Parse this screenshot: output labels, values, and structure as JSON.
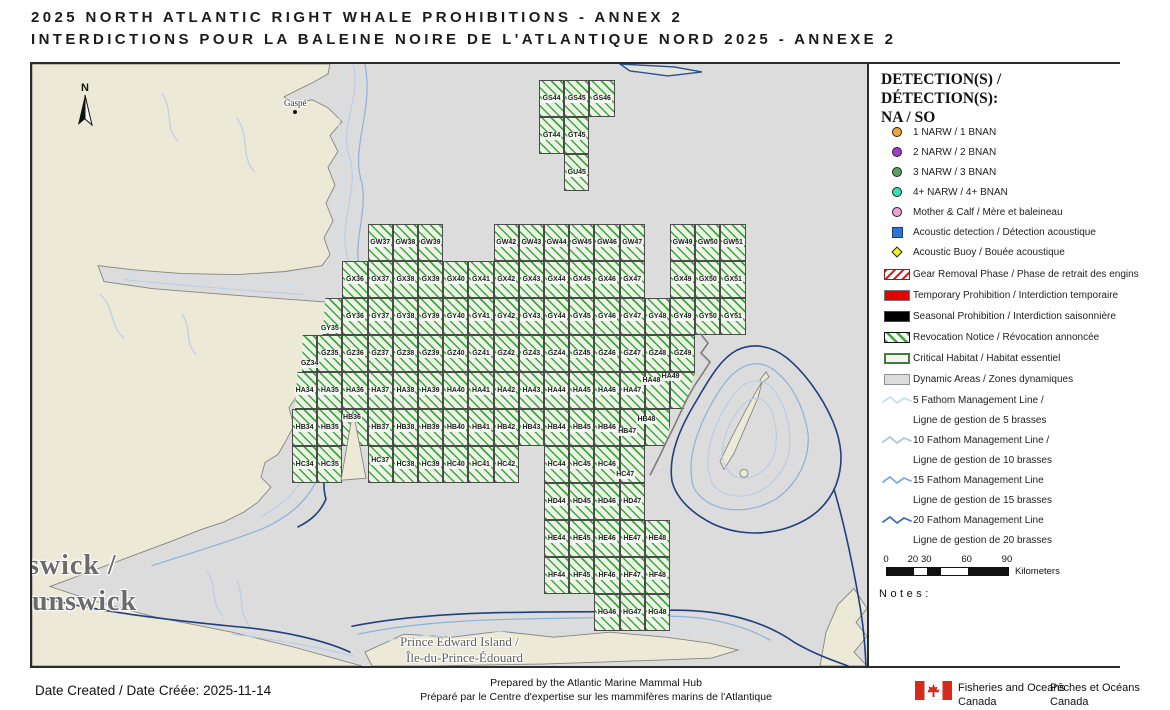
{
  "title": {
    "line1": "2025 NORTH ATLANTIC RIGHT WHALE PROHIBITIONS - ANNEX 2",
    "line2": "INTERDICTIONS POUR LA BALEINE NOIRE DE L'ATLANTIQUE NORD 2025 - ANNEXE 2"
  },
  "legend": {
    "title_line1": "DETECTION(S) / DÉTECTION(S):",
    "title_line2": "NA / SO",
    "detections": [
      {
        "shape": "circle",
        "color": "#F2A43A",
        "label": "1 NARW / 1 BNAN"
      },
      {
        "shape": "circle",
        "color": "#A23BC6",
        "label": "2 NARW / 2 BNAN"
      },
      {
        "shape": "circle",
        "color": "#57A45C",
        "label": "3 NARW / 3 BNAN"
      },
      {
        "shape": "circle",
        "color": "#35E0B5",
        "label": "4+ NARW / 4+ BNAN"
      },
      {
        "shape": "circle",
        "color": "#F2A0D8",
        "label": "Mother & Calf / Mère et baleineau"
      },
      {
        "shape": "square",
        "color": "#2E74D6",
        "label": "Acoustic detection / Détection acoustique"
      },
      {
        "shape": "diamond",
        "color": "#F5F02A",
        "label": "Acoustic Buoy / Bouée acoustique"
      }
    ],
    "zones": [
      {
        "swatch": "hatch-red",
        "color": "#E02020",
        "label": "Gear Removal Phase / Phase de retrait des engins"
      },
      {
        "swatch": "solid-red",
        "color": "#E80000",
        "label": "Temporary Prohibition / Interdiction temporaire"
      },
      {
        "swatch": "solid-black",
        "color": "#000000",
        "label": "Seasonal Prohibition / Interdiction saisonnière"
      },
      {
        "swatch": "hatch-green",
        "color": "#2FAE2F",
        "label": "Revocation Notice / Révocation annoncée"
      },
      {
        "swatch": "critical",
        "color": "#3C7D3C",
        "label": "Critical Habitat / Habitat essentiel"
      },
      {
        "swatch": "dynamic",
        "color": "#DCDCDC",
        "label": "Dynamic Areas / Zones dynamiques"
      }
    ],
    "fathom_lines": [
      {
        "color": "#C9DCF0",
        "label1": "5 Fathom Management Line /",
        "label2": "Ligne de gestion de 5 brasses"
      },
      {
        "color": "#A6C3E8",
        "label1": "10 Fathom Management Line /",
        "label2": "Ligne de gestion de 10 brasses"
      },
      {
        "color": "#7AA4DB",
        "label1": "15 Fathom Management Line",
        "label2": "Ligne de gestion de 15 brasses"
      },
      {
        "color": "#3A6CB8",
        "label1": "20 Fathom Management Line",
        "label2": "Ligne de gestion de 20 brasses"
      }
    ],
    "scalebar": {
      "ticks": [
        "0",
        "20",
        "30",
        "60",
        "90"
      ],
      "unit": "Kilometers"
    },
    "notes_label": "Notes:"
  },
  "map": {
    "north_label": "N",
    "labels": {
      "gaspe": "Gaspé",
      "nb_line1": "swick /",
      "nb_line2": "unswick",
      "pei_line1": "Prince Edward Island /",
      "pei_line2": "Île-du-Prince-Édouard"
    },
    "colors": {
      "water": "#DCDCDC",
      "land": "#ECE9D6",
      "grid_hatch": "#35AD35",
      "grid_border": "#4B4B4B",
      "contour_navy": "#1F3F7E"
    },
    "grid_rows": [
      {
        "name": "GS",
        "cols": [
          44,
          45,
          46
        ]
      },
      {
        "name": "GT",
        "cols": [
          44,
          45
        ]
      },
      {
        "name": "GU",
        "cols": [
          45
        ]
      },
      {
        "name": "GW",
        "cols": [
          37,
          38,
          39,
          42,
          43,
          44,
          45,
          46,
          47,
          49,
          50,
          51
        ]
      },
      {
        "name": "GX",
        "cols": [
          36,
          37,
          38,
          39,
          40,
          41,
          42,
          43,
          44,
          45,
          46,
          47,
          49,
          50,
          51
        ]
      },
      {
        "name": "GY",
        "cols": [
          35,
          36,
          37,
          38,
          39,
          40,
          41,
          42,
          43,
          44,
          45,
          46,
          47,
          48,
          49,
          50,
          51
        ]
      },
      {
        "name": "GZ",
        "cols": [
          34,
          35,
          36,
          37,
          38,
          39,
          40,
          41,
          42,
          43,
          44,
          45,
          46,
          47,
          48,
          49
        ]
      },
      {
        "name": "HA",
        "cols": [
          34,
          35,
          36,
          37,
          38,
          39,
          40,
          41,
          42,
          43,
          44,
          45,
          46,
          47,
          48,
          49
        ]
      },
      {
        "name": "HB",
        "cols": [
          34,
          35,
          36,
          37,
          38,
          39,
          40,
          41,
          42,
          43,
          44,
          45,
          46,
          47,
          48
        ]
      },
      {
        "name": "HC",
        "cols": [
          34,
          35,
          37,
          38,
          39,
          40,
          41,
          42,
          44,
          45,
          46,
          47
        ]
      },
      {
        "name": "HD",
        "cols": [
          44,
          45,
          46,
          47
        ]
      },
      {
        "name": "HE",
        "cols": [
          44,
          45,
          46,
          47,
          48
        ]
      },
      {
        "name": "HF",
        "cols": [
          44,
          45,
          46,
          47,
          48
        ]
      },
      {
        "name": "HG",
        "cols": [
          46,
          47,
          48
        ]
      }
    ]
  },
  "footer": {
    "date": "Date Created / Date Créée: 2025-11-14",
    "prepared_line1": "Prepared by the Atlantic Marine Mammal Hub",
    "prepared_line2": "Préparé par le Centre d'expertise sur les mammifères marins de l'Atlantique",
    "dfo_en_line1": "Fisheries and Oceans",
    "dfo_en_line2": "Canada",
    "dfo_fr_line1": "Pêches et Océans",
    "dfo_fr_line2": "Canada"
  }
}
